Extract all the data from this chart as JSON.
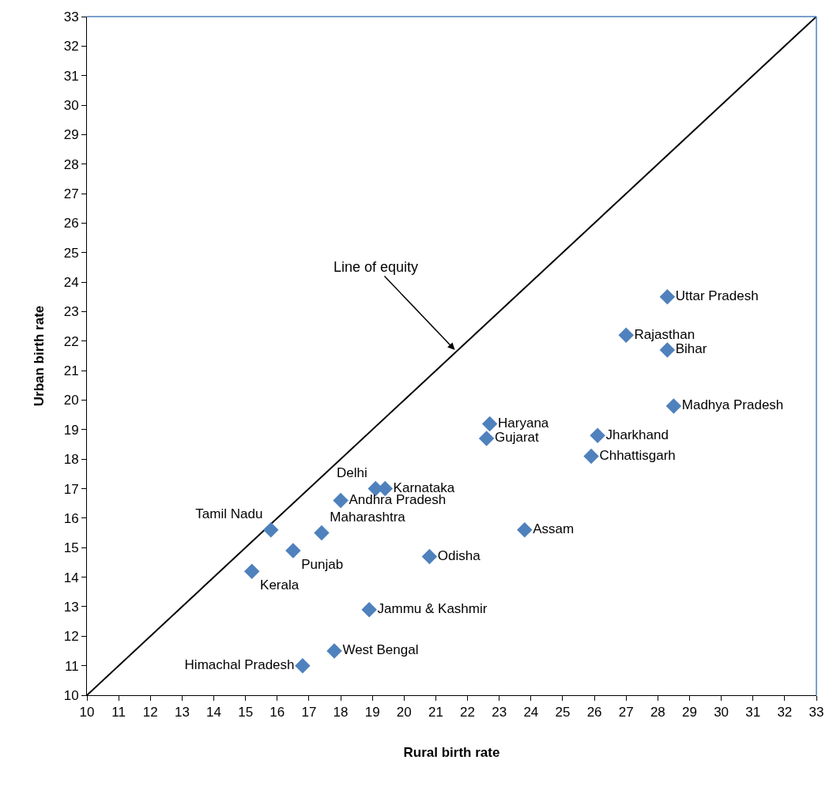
{
  "chart_data": {
    "type": "scatter",
    "xlabel": "Rural birth rate",
    "ylabel": "Urban birth rate",
    "xlim": [
      10,
      33
    ],
    "ylim": [
      10,
      33
    ],
    "xticks": [
      10,
      11,
      12,
      13,
      14,
      15,
      16,
      17,
      18,
      19,
      20,
      21,
      22,
      23,
      24,
      25,
      26,
      27,
      28,
      29,
      30,
      31,
      32,
      33
    ],
    "yticks": [
      10,
      11,
      12,
      13,
      14,
      15,
      16,
      17,
      18,
      19,
      20,
      21,
      22,
      23,
      24,
      25,
      26,
      27,
      28,
      29,
      30,
      31,
      32,
      33
    ],
    "marker": "diamond",
    "annotations": [
      {
        "text": "Line of equity",
        "x": 21.6,
        "y": 21.7
      }
    ],
    "series": [
      {
        "type": "line",
        "color": "#000000",
        "marker": "none",
        "line_style": "solid",
        "x": [
          10,
          33
        ],
        "values": [
          10,
          33
        ]
      },
      {
        "name": "Uttar Pradesh",
        "color": "#4f81bd",
        "x": [
          28.3
        ],
        "values": [
          23.5
        ]
      },
      {
        "name": "Rajasthan",
        "color": "#4f81bd",
        "x": [
          27.0
        ],
        "values": [
          22.2
        ]
      },
      {
        "name": "Bihar",
        "color": "#4f81bd",
        "x": [
          28.3
        ],
        "values": [
          21.7
        ]
      },
      {
        "name": "Madhya Pradesh",
        "color": "#4f81bd",
        "x": [
          28.5
        ],
        "values": [
          19.8
        ]
      },
      {
        "name": "Haryana",
        "color": "#4f81bd",
        "x": [
          22.7
        ],
        "values": [
          19.2
        ]
      },
      {
        "name": "Gujarat",
        "color": "#4f81bd",
        "x": [
          22.6
        ],
        "values": [
          18.7
        ]
      },
      {
        "name": "Jharkhand",
        "color": "#4f81bd",
        "x": [
          26.1
        ],
        "values": [
          18.8
        ]
      },
      {
        "name": "Chhattisgarh",
        "color": "#4f81bd",
        "x": [
          25.9
        ],
        "values": [
          18.1
        ]
      },
      {
        "name": "Delhi",
        "color": "#4f81bd",
        "x": [
          19.1
        ],
        "values": [
          17.0
        ]
      },
      {
        "name": "Karnataka",
        "color": "#4f81bd",
        "x": [
          19.4
        ],
        "values": [
          17.0
        ]
      },
      {
        "name": "Andhra Pradesh",
        "color": "#4f81bd",
        "x": [
          18.0
        ],
        "values": [
          16.6
        ]
      },
      {
        "name": "Assam",
        "color": "#4f81bd",
        "x": [
          23.8
        ],
        "values": [
          15.6
        ]
      },
      {
        "name": "Maharashtra",
        "color": "#4f81bd",
        "x": [
          17.4
        ],
        "values": [
          15.5
        ]
      },
      {
        "name": "Tamil Nadu",
        "color": "#4f81bd",
        "x": [
          15.8
        ],
        "values": [
          15.6
        ]
      },
      {
        "name": "Punjab",
        "color": "#4f81bd",
        "x": [
          16.5
        ],
        "values": [
          14.9
        ]
      },
      {
        "name": "Odisha",
        "color": "#4f81bd",
        "x": [
          20.8
        ],
        "values": [
          14.7
        ]
      },
      {
        "name": "Kerala",
        "color": "#4f81bd",
        "x": [
          15.2
        ],
        "values": [
          14.2
        ]
      },
      {
        "name": "Jammu & Kashmir",
        "color": "#4f81bd",
        "x": [
          18.9
        ],
        "values": [
          12.9
        ]
      },
      {
        "name": "West Bengal",
        "color": "#4f81bd",
        "x": [
          17.8
        ],
        "values": [
          11.5
        ]
      },
      {
        "name": "Himachal Pradesh",
        "color": "#4f81bd",
        "x": [
          16.8
        ],
        "values": [
          11.0
        ]
      }
    ]
  }
}
